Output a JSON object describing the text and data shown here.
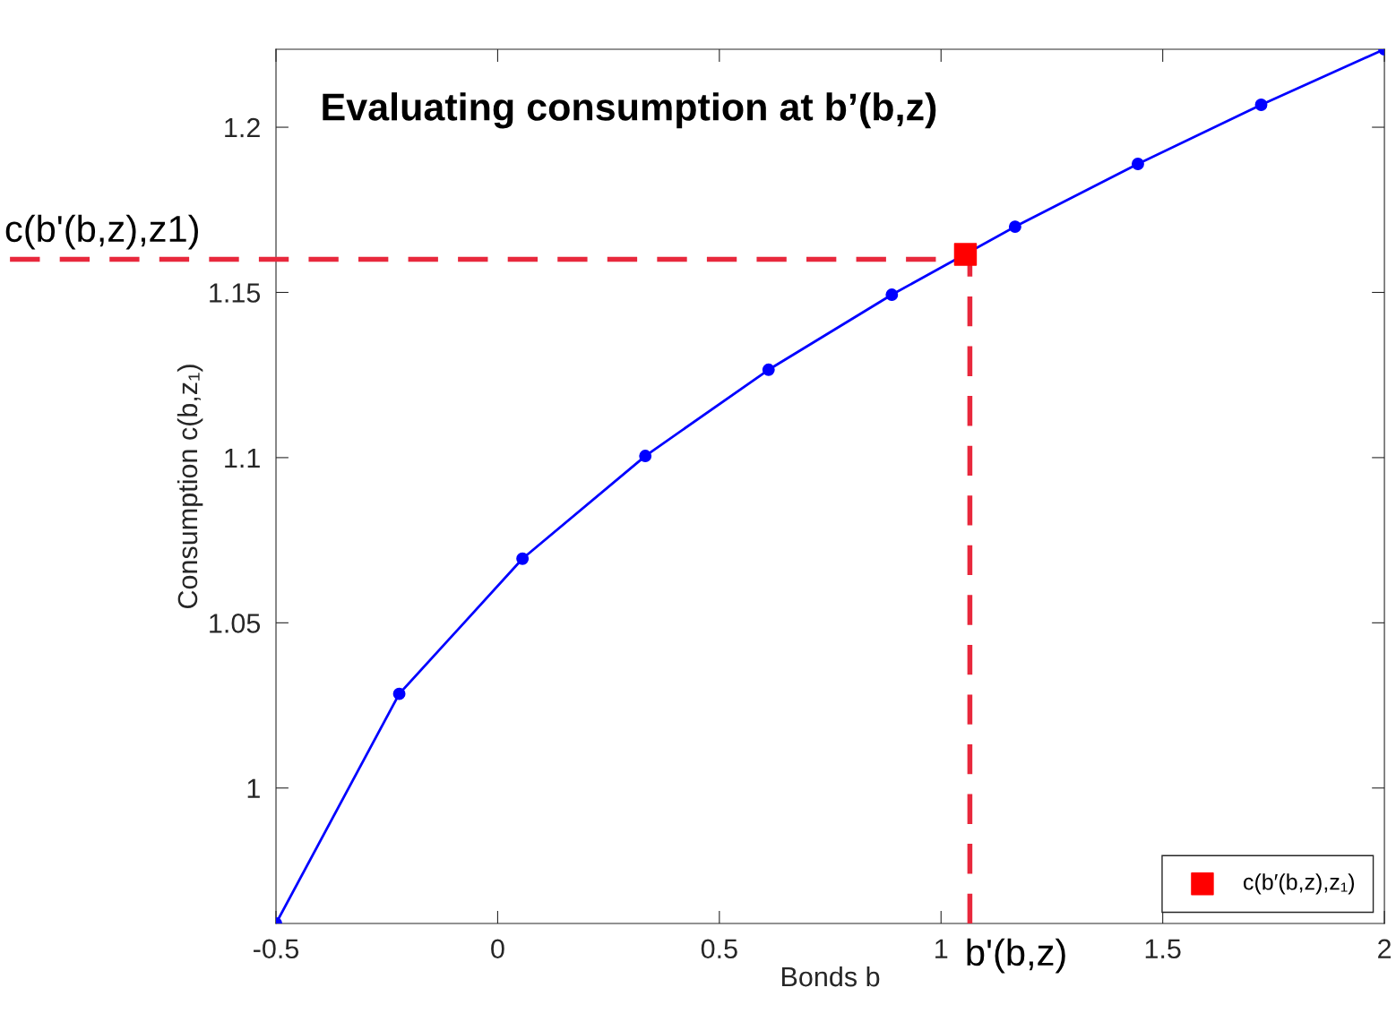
{
  "chart_data": {
    "type": "line",
    "title": "Evaluating consumption at b’(b,z)",
    "xlabel": "Bonds b",
    "ylabel": "Consumption c(b,z₁)",
    "series": [
      {
        "color": "#0000ff",
        "marker": "circle",
        "line_style": "solid",
        "x": [
          -0.5,
          -0.222,
          0.056,
          0.333,
          0.611,
          0.889,
          1.167,
          1.444,
          1.722,
          2.0
        ],
        "values": [
          0.959,
          1.0285,
          1.0694,
          1.1005,
          1.1266,
          1.1493,
          1.1699,
          1.1889,
          1.2068,
          1.2236
        ]
      },
      {
        "type": "scatter",
        "name": "c(b′(b,z),z₁)",
        "color": "#ff0000",
        "marker": "square",
        "x": [
          1.055
        ],
        "values": [
          1.1615
        ]
      }
    ],
    "ref_lines": [
      {
        "axis": "y",
        "value": 1.16,
        "label": "c(b'(b,z),z1)",
        "color": "#e8283c",
        "line_style": "dashed"
      },
      {
        "axis": "x",
        "value": 1.065,
        "label": "b'(b,z)",
        "color": "#e8283c",
        "line_style": "dashed"
      }
    ],
    "xlim": [
      -0.5,
      2
    ],
    "xticks": [
      -0.5,
      0,
      0.5,
      1,
      1.5,
      2
    ],
    "ylim": [
      0.959,
      1.2236
    ],
    "yticks": [
      1,
      1.05,
      1.1,
      1.15,
      1.2
    ],
    "grid": false,
    "legend": "bottom right"
  }
}
